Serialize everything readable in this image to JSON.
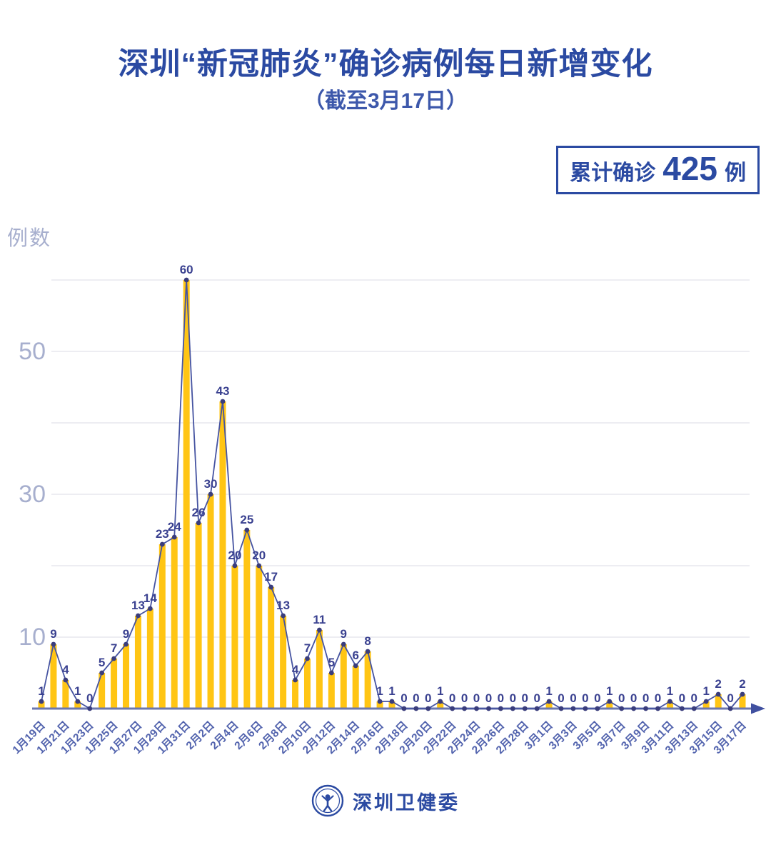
{
  "title": "深圳“新冠肺炎”确诊病例每日新增变化",
  "subtitle": "（截至3月17日）",
  "badge": {
    "prefix": "累计确诊",
    "value": "425",
    "suffix": "例"
  },
  "y_axis_label": "例数",
  "footer": {
    "org_name": "深圳卫健委",
    "logo": "shenzhen-health-commission-emblem"
  },
  "colors": {
    "accent_blue": "#2b4aa2",
    "subtitle_blue": "#3d58ab",
    "bar_yellow": "#ffc514",
    "line_blue": "#4553a1",
    "dot_indigo": "#3a3d7c",
    "value_label_indigo": "#3a4190",
    "date_label_blue": "#5364ae",
    "ytick_light": "#a7afce",
    "gridline_gray": "#e7e7ed",
    "axis_blue": "#6b77ae",
    "arrow_blue": "#4050a0"
  },
  "chart_data": {
    "type": "bar",
    "line_overlay": true,
    "title": "深圳“新冠肺炎”确诊病例每日新增变化",
    "subtitle": "（截至3月17日）",
    "cumulative_total": 425,
    "xlabel": "",
    "ylabel": "例数",
    "ylim": [
      0,
      60
    ],
    "gridline_interval": 10,
    "grid": true,
    "ytick_labels_shown": [
      50,
      30,
      10
    ],
    "categories": [
      "1月19日",
      "1月20日",
      "1月21日",
      "1月22日",
      "1月23日",
      "1月24日",
      "1月25日",
      "1月26日",
      "1月27日",
      "1月28日",
      "1月29日",
      "1月30日",
      "1月31日",
      "2月1日",
      "2月2日",
      "2月3日",
      "2月4日",
      "2月5日",
      "2月6日",
      "2月7日",
      "2月8日",
      "2月9日",
      "2月10日",
      "2月11日",
      "2月12日",
      "2月13日",
      "2月14日",
      "2月15日",
      "2月16日",
      "2月17日",
      "2月18日",
      "2月19日",
      "2月20日",
      "2月21日",
      "2月22日",
      "2月23日",
      "2月24日",
      "2月25日",
      "2月26日",
      "2月27日",
      "2月28日",
      "2月29日",
      "3月1日",
      "3月2日",
      "3月3日",
      "3月4日",
      "3月5日",
      "3月6日",
      "3月7日",
      "3月8日",
      "3月9日",
      "3月10日",
      "3月11日",
      "3月12日",
      "3月13日",
      "3月14日",
      "3月15日",
      "3月16日",
      "3月17日"
    ],
    "values": [
      1,
      9,
      4,
      1,
      0,
      5,
      7,
      9,
      13,
      14,
      23,
      24,
      60,
      26,
      30,
      43,
      20,
      25,
      20,
      17,
      13,
      4,
      7,
      11,
      5,
      9,
      6,
      8,
      1,
      1,
      0,
      0,
      0,
      1,
      0,
      0,
      0,
      0,
      0,
      0,
      0,
      0,
      1,
      0,
      0,
      0,
      0,
      1,
      0,
      0,
      0,
      0,
      1,
      0,
      0,
      1,
      2,
      0,
      2
    ],
    "visible_x_ticks": [
      "1月19日",
      "1月21日",
      "1月23日",
      "1月25日",
      "1月27日",
      "1月29日",
      "1月31日",
      "2月2日",
      "2月4日",
      "2月6日",
      "2月8日",
      "2月10日",
      "2月12日",
      "2月14日",
      "2月16日",
      "2月18日",
      "2月20日",
      "2月22日",
      "2月24日",
      "2月26日",
      "2月28日",
      "3月1日",
      "3月3日",
      "3月5日",
      "3月7日",
      "3月9日",
      "3月11日",
      "3月13日",
      "3月15日",
      "3月17日"
    ]
  }
}
